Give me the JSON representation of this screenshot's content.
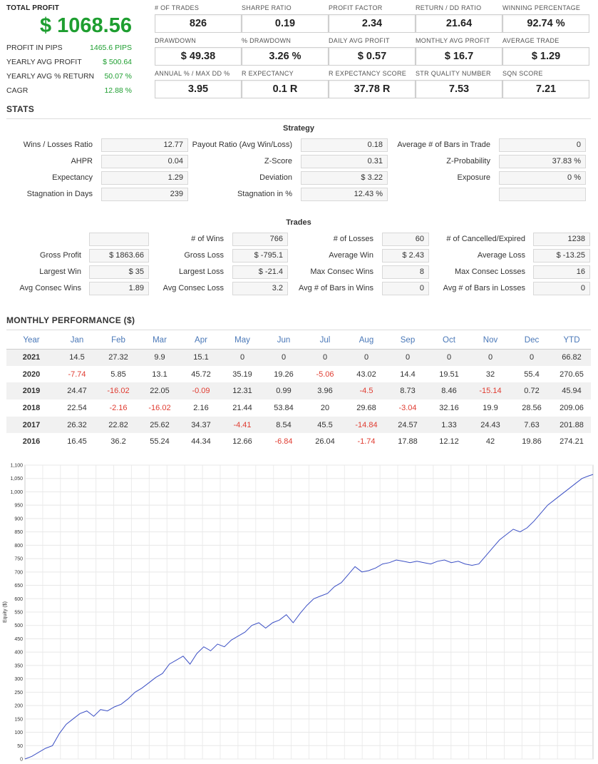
{
  "summary": {
    "total_profit_label": "TOTAL PROFIT",
    "total_profit": "$ 1068.56",
    "lines": [
      {
        "label": "PROFIT IN PIPS",
        "value": "1465.6 PIPS"
      },
      {
        "label": "YEARLY AVG PROFIT",
        "value": "$ 500.64"
      },
      {
        "label": "YEARLY AVG %  RETURN",
        "value": "50.07 %"
      },
      {
        "label": "CAGR",
        "value": "12.88 %"
      }
    ]
  },
  "metrics": [
    {
      "label": "# OF TRADES",
      "value": "826"
    },
    {
      "label": "SHARPE RATIO",
      "value": "0.19"
    },
    {
      "label": "PROFIT FACTOR",
      "value": "2.34"
    },
    {
      "label": "RETURN / DD RATIO",
      "value": "21.64"
    },
    {
      "label": "WINNING PERCENTAGE",
      "value": "92.74 %"
    },
    {
      "label": "DRAWDOWN",
      "value": "$ 49.38"
    },
    {
      "label": "% DRAWDOWN",
      "value": "3.26 %"
    },
    {
      "label": "DAILY AVG PROFIT",
      "value": "$ 0.57"
    },
    {
      "label": "MONTHLY AVG PROFIT",
      "value": "$ 16.7"
    },
    {
      "label": "AVERAGE TRADE",
      "value": "$ 1.29"
    },
    {
      "label": "ANNUAL % / MAX DD %",
      "value": "3.95"
    },
    {
      "label": "R EXPECTANCY",
      "value": "0.1 R"
    },
    {
      "label": "R EXPECTANCY SCORE",
      "value": "37.78 R"
    },
    {
      "label": "STR QUALITY NUMBER",
      "value": "7.53"
    },
    {
      "label": "SQN SCORE",
      "value": "7.21"
    }
  ],
  "stats": {
    "title": "STATS",
    "strategy_title": "Strategy",
    "strategy": [
      {
        "label": "Wins / Losses Ratio",
        "value": "12.77"
      },
      {
        "label": "Payout Ratio (Avg Win/Loss)",
        "value": "0.18"
      },
      {
        "label": "Average # of Bars in Trade",
        "value": "0"
      },
      {
        "label": "AHPR",
        "value": "0.04"
      },
      {
        "label": "Z-Score",
        "value": "0.31"
      },
      {
        "label": "Z-Probability",
        "value": "37.83 %"
      },
      {
        "label": "Expectancy",
        "value": "1.29"
      },
      {
        "label": "Deviation",
        "value": "$ 3.22"
      },
      {
        "label": "Exposure",
        "value": "0 %"
      },
      {
        "label": "Stagnation in Days",
        "value": "239"
      },
      {
        "label": "Stagnation in %",
        "value": "12.43 %"
      },
      {
        "label": "",
        "value": ""
      }
    ],
    "trades_title": "Trades",
    "trades": [
      {
        "label": "",
        "value": ""
      },
      {
        "label": "# of Wins",
        "value": "766"
      },
      {
        "label": "# of Losses",
        "value": "60"
      },
      {
        "label": "# of Cancelled/Expired",
        "value": "1238"
      },
      {
        "label": "Gross Profit",
        "value": "$ 1863.66"
      },
      {
        "label": "Gross Loss",
        "value": "$ -795.1"
      },
      {
        "label": "Average Win",
        "value": "$ 2.43"
      },
      {
        "label": "Average Loss",
        "value": "$ -13.25"
      },
      {
        "label": "Largest Win",
        "value": "$ 35"
      },
      {
        "label": "Largest Loss",
        "value": "$ -21.4"
      },
      {
        "label": "Max Consec Wins",
        "value": "8"
      },
      {
        "label": "Max Consec Losses",
        "value": "16"
      },
      {
        "label": "Avg Consec Wins",
        "value": "1.89"
      },
      {
        "label": "Avg Consec Loss",
        "value": "3.2"
      },
      {
        "label": "Avg # of Bars in Wins",
        "value": "0"
      },
      {
        "label": "Avg # of Bars in Losses",
        "value": "0"
      }
    ]
  },
  "monthly": {
    "title": "MONTHLY PERFORMANCE ($)",
    "headers": [
      "Year",
      "Jan",
      "Feb",
      "Mar",
      "Apr",
      "May",
      "Jun",
      "Jul",
      "Aug",
      "Sep",
      "Oct",
      "Nov",
      "Dec",
      "YTD"
    ],
    "rows": [
      [
        "2021",
        "14.5",
        "27.32",
        "9.9",
        "15.1",
        "0",
        "0",
        "0",
        "0",
        "0",
        "0",
        "0",
        "0",
        "66.82"
      ],
      [
        "2020",
        "-7.74",
        "5.85",
        "13.1",
        "45.72",
        "35.19",
        "19.26",
        "-5.06",
        "43.02",
        "14.4",
        "19.51",
        "32",
        "55.4",
        "270.65"
      ],
      [
        "2019",
        "24.47",
        "-16.02",
        "22.05",
        "-0.09",
        "12.31",
        "0.99",
        "3.96",
        "-4.5",
        "8.73",
        "8.46",
        "-15.14",
        "0.72",
        "45.94"
      ],
      [
        "2018",
        "22.54",
        "-2.16",
        "-16.02",
        "2.16",
        "21.44",
        "53.84",
        "20",
        "29.68",
        "-3.04",
        "32.16",
        "19.9",
        "28.56",
        "209.06"
      ],
      [
        "2017",
        "26.32",
        "22.82",
        "25.62",
        "34.37",
        "-4.41",
        "8.54",
        "45.5",
        "-14.84",
        "24.57",
        "1.33",
        "24.43",
        "7.63",
        "201.88"
      ],
      [
        "2016",
        "16.45",
        "36.2",
        "55.24",
        "44.34",
        "12.66",
        "-6.84",
        "26.04",
        "-1.74",
        "17.88",
        "12.12",
        "42",
        "19.86",
        "274.21"
      ]
    ],
    "negative_color": "#e03c31",
    "header_color": "#4a78b8"
  },
  "chart_data": {
    "type": "line",
    "ylabel": "Equity ($)",
    "xlabel": "",
    "ylim": [
      0,
      1100
    ],
    "yticks": [
      "0",
      "50",
      "100",
      "150",
      "200",
      "250",
      "300",
      "350",
      "400",
      "450",
      "500",
      "550",
      "600",
      "650",
      "700",
      "750",
      "800",
      "850",
      "900",
      "950",
      "1,000",
      "1,050",
      "1,100"
    ],
    "grid": true,
    "line_color": "#3b4fc4",
    "x": [
      0,
      10,
      20,
      30,
      40,
      50,
      60,
      70,
      80,
      90,
      100,
      110,
      120,
      130,
      140,
      150,
      160,
      170,
      180,
      190,
      200,
      210,
      220,
      230,
      240,
      250,
      260,
      270,
      280,
      290,
      300,
      310,
      320,
      330,
      340,
      350,
      360,
      370,
      380,
      390,
      400,
      410,
      420,
      430,
      440,
      450,
      460,
      470,
      480,
      490,
      500,
      510,
      520,
      530,
      540,
      550,
      560,
      570,
      580,
      590,
      600,
      610,
      620,
      630,
      640,
      650,
      660,
      670,
      680,
      690,
      700,
      710,
      720,
      730,
      740,
      750,
      760,
      770,
      780,
      790,
      800,
      810,
      820,
      826
    ],
    "values": [
      0,
      10,
      25,
      40,
      50,
      95,
      130,
      150,
      170,
      180,
      160,
      185,
      180,
      195,
      205,
      225,
      250,
      265,
      285,
      305,
      320,
      355,
      370,
      385,
      355,
      395,
      420,
      405,
      430,
      420,
      445,
      460,
      475,
      500,
      510,
      490,
      510,
      520,
      540,
      510,
      545,
      575,
      600,
      610,
      620,
      645,
      660,
      690,
      720,
      700,
      705,
      715,
      730,
      735,
      745,
      740,
      735,
      740,
      735,
      730,
      740,
      745,
      735,
      740,
      730,
      725,
      730,
      760,
      790,
      820,
      840,
      860,
      850,
      865,
      890,
      920,
      950,
      970,
      990,
      1010,
      1030,
      1050,
      1060,
      1065
    ]
  }
}
